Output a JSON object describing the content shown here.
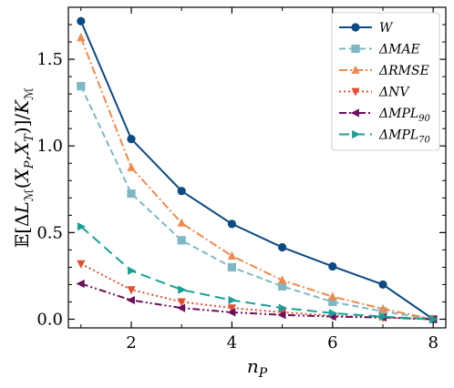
{
  "chart_data": {
    "type": "line",
    "xlabel": "n_P",
    "ylabel": "E[ΔL_M(X_P,X_T)]/K_M",
    "x": [
      1,
      2,
      3,
      4,
      5,
      6,
      7,
      8
    ],
    "xlim": [
      0.75,
      8.25
    ],
    "ylim": [
      -0.05,
      1.8
    ],
    "xticks": [
      2,
      4,
      6,
      8
    ],
    "xtick_labels": [
      "2",
      "4",
      "6",
      "8"
    ],
    "yticks": [
      0.0,
      0.5,
      1.0,
      1.5
    ],
    "ytick_labels": [
      "0.0",
      "0.5",
      "1.0",
      "1.5"
    ],
    "grid": false,
    "legend_position": "top-right",
    "series": [
      {
        "name": "W",
        "values": [
          1.72,
          1.04,
          0.74,
          0.55,
          0.415,
          0.305,
          0.2,
          0.0
        ],
        "color": "#0b4a82",
        "marker": "circle",
        "dash": "solid"
      },
      {
        "name": "ΔMAE",
        "values": [
          1.345,
          0.725,
          0.455,
          0.3,
          0.19,
          0.1,
          0.045,
          0.0
        ],
        "color": "#7fb8c4",
        "marker": "square",
        "dash": "dashed"
      },
      {
        "name": "ΔRMSE",
        "values": [
          1.625,
          0.875,
          0.555,
          0.365,
          0.225,
          0.13,
          0.06,
          0.0
        ],
        "color": "#f08a4b",
        "marker": "triangle-up",
        "dash": "dashdot"
      },
      {
        "name": "ΔNV",
        "values": [
          0.32,
          0.17,
          0.1,
          0.065,
          0.04,
          0.02,
          0.01,
          0.0
        ],
        "color": "#e0502e",
        "marker": "triangle-down",
        "dash": "dotted"
      },
      {
        "name": "ΔMPL90",
        "values": [
          0.205,
          0.11,
          0.065,
          0.04,
          0.025,
          0.015,
          0.01,
          0.0
        ],
        "color": "#6b0f5e",
        "marker": "triangle-left",
        "dash": "dashdotdot"
      },
      {
        "name": "ΔMPL70",
        "values": [
          0.535,
          0.28,
          0.17,
          0.11,
          0.065,
          0.035,
          0.015,
          0.0
        ],
        "color": "#17a196",
        "marker": "triangle-right",
        "dash": "longdash"
      }
    ]
  }
}
